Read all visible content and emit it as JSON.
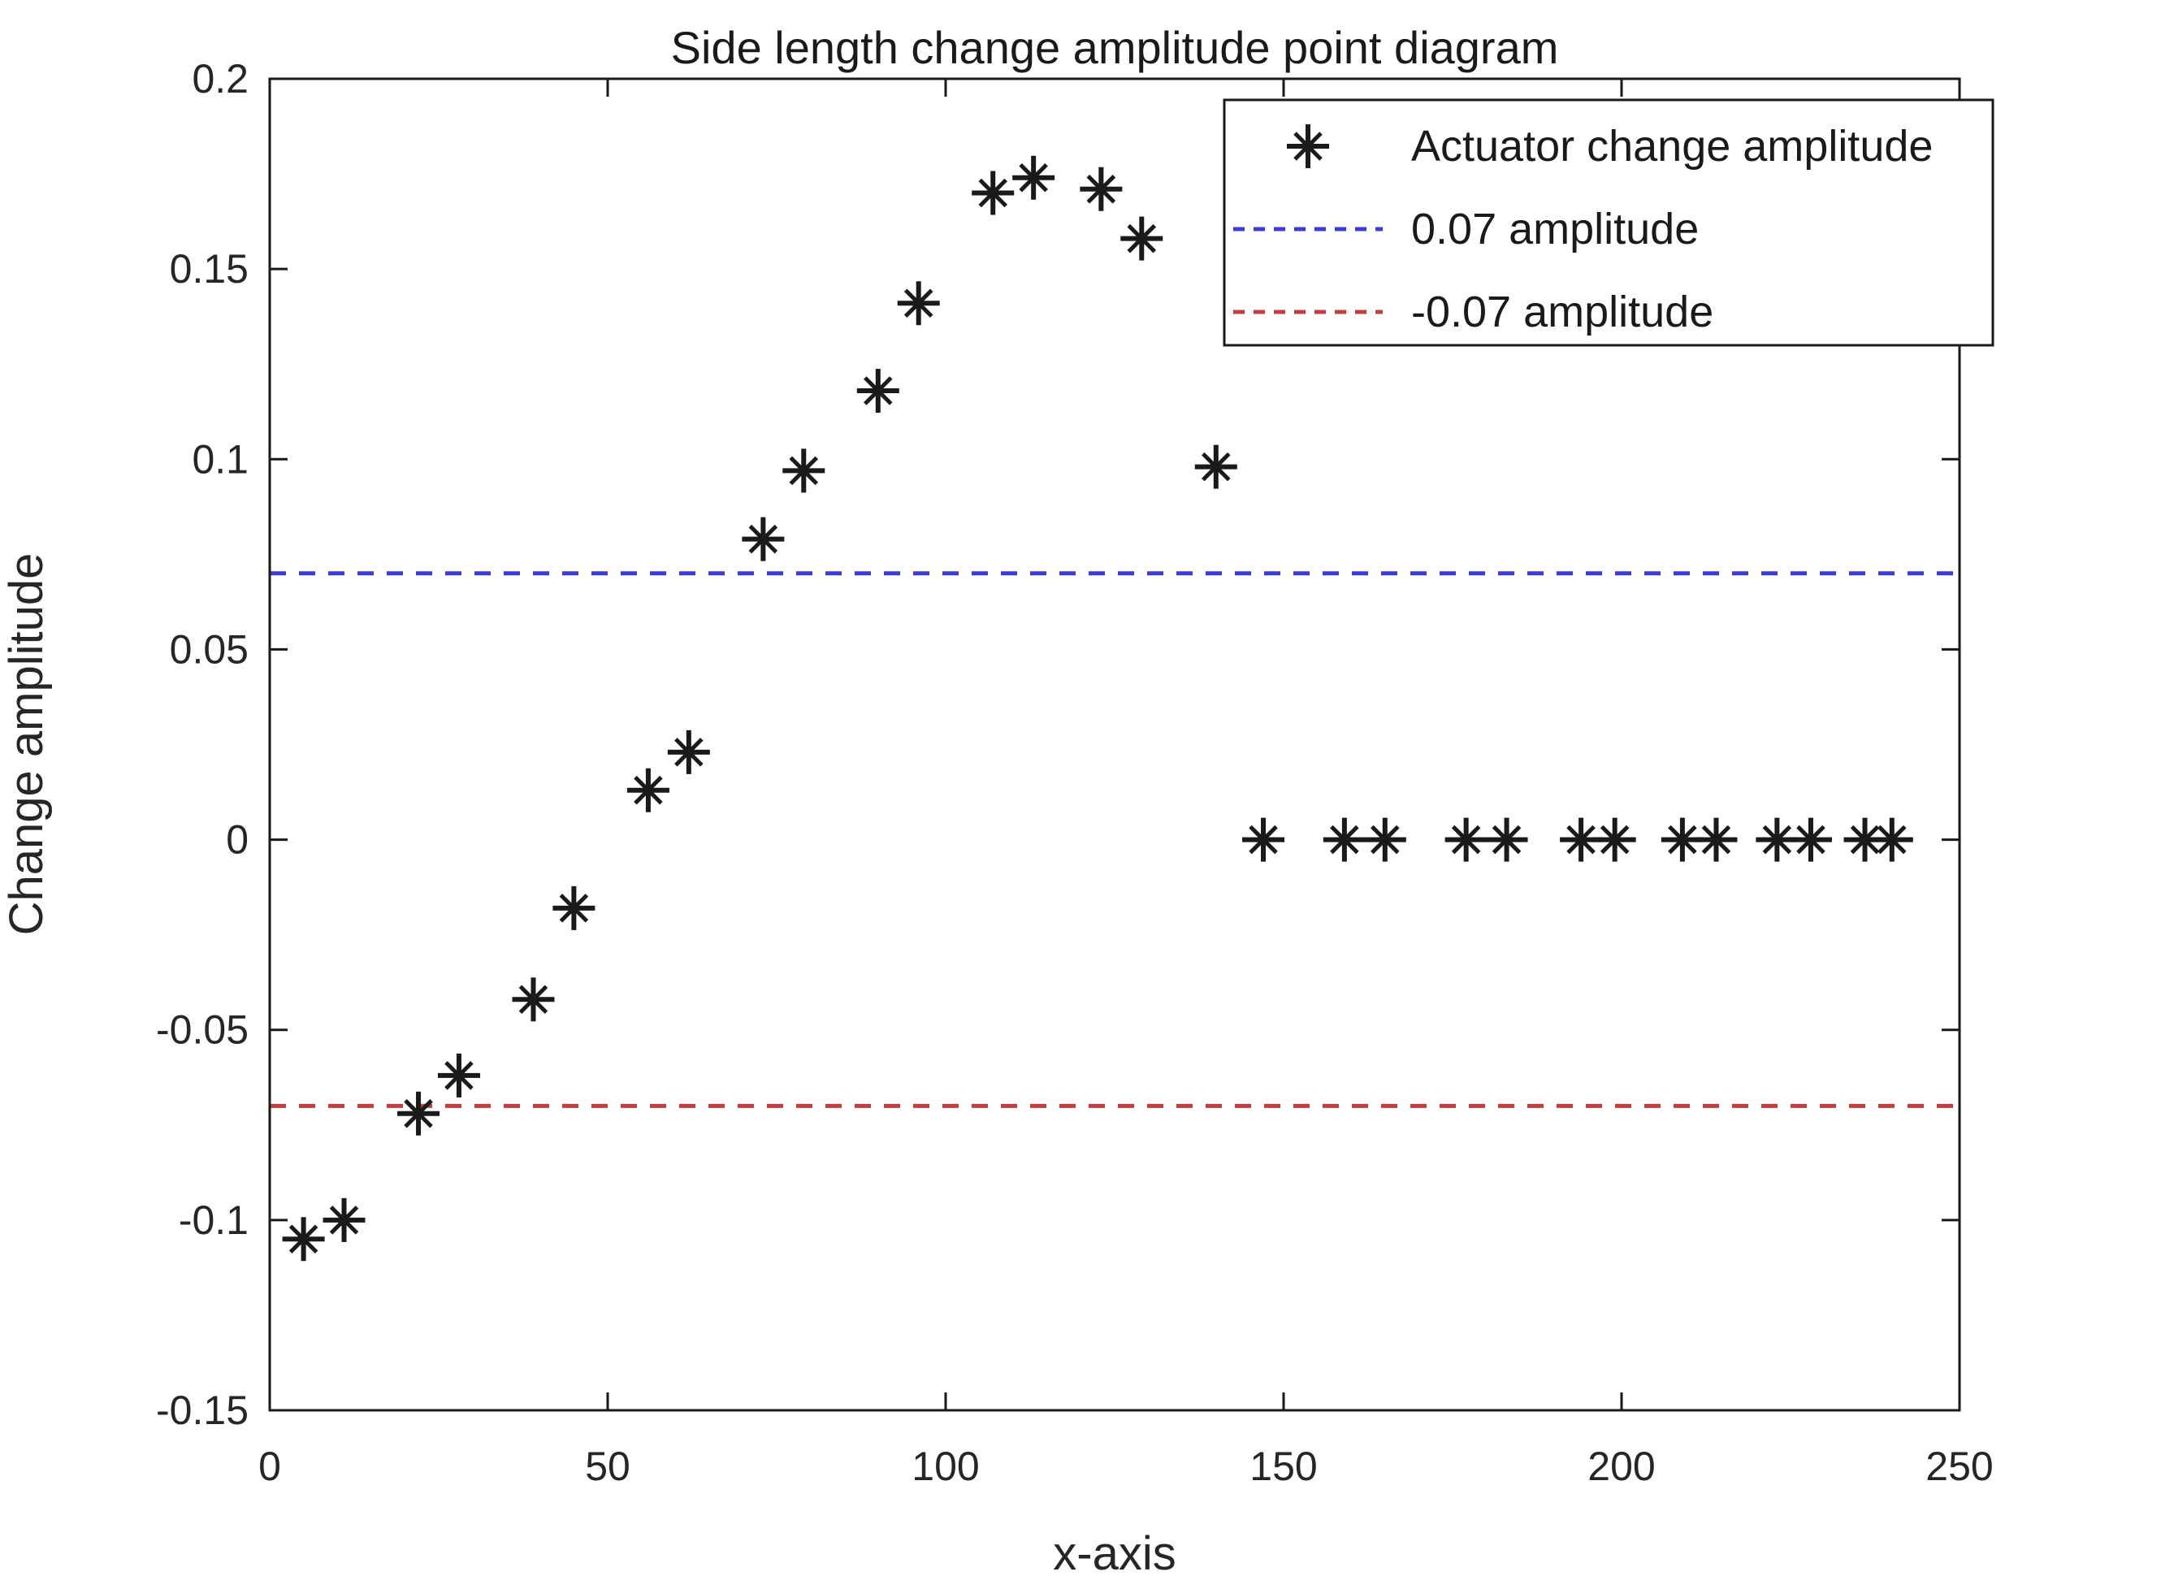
{
  "chart_data": {
    "type": "scatter",
    "title": "Side length change amplitude point diagram",
    "xlabel": "x-axis",
    "ylabel": "Change amplitude",
    "xlim": [
      0,
      250
    ],
    "ylim": [
      -0.15,
      0.2
    ],
    "x_ticks": [
      0,
      50,
      100,
      150,
      200,
      250
    ],
    "x_tick_labels": [
      "0",
      "50",
      "100",
      "150",
      "200",
      "250"
    ],
    "y_ticks": [
      -0.15,
      -0.1,
      -0.05,
      0,
      0.05,
      0.1,
      0.15,
      0.2
    ],
    "y_tick_labels": [
      "-0.15",
      "-0.1",
      "-0.05",
      "0",
      "0.05",
      "0.1",
      "0.15",
      "0.2"
    ],
    "grid": false,
    "legend_position": "top-right-inside",
    "colors": {
      "marker": "#1a1a1a",
      "upper_line": "#3d3dcd",
      "lower_line": "#c04040",
      "axis": "#1a1a1a",
      "text": "#262626"
    },
    "series": [
      {
        "name": "Actuator change amplitude",
        "type": "scatter",
        "marker": "asterisk",
        "color": "#1a1a1a",
        "points": [
          [
            5,
            -0.105
          ],
          [
            11,
            -0.1
          ],
          [
            22,
            -0.072
          ],
          [
            28,
            -0.062
          ],
          [
            39,
            -0.042
          ],
          [
            45,
            -0.018
          ],
          [
            56,
            0.013
          ],
          [
            62,
            0.023
          ],
          [
            73,
            0.079
          ],
          [
            79,
            0.097
          ],
          [
            90,
            0.118
          ],
          [
            96,
            0.141
          ],
          [
            107,
            0.17
          ],
          [
            113,
            0.174
          ],
          [
            123,
            0.171
          ],
          [
            129,
            0.158
          ],
          [
            140,
            0.098
          ],
          [
            147,
            0
          ],
          [
            159,
            0
          ],
          [
            165,
            0
          ],
          [
            177,
            0
          ],
          [
            183,
            0
          ],
          [
            194,
            0
          ],
          [
            199,
            0
          ],
          [
            209,
            0
          ],
          [
            214,
            0
          ],
          [
            223,
            0
          ],
          [
            228,
            0
          ],
          [
            236,
            0
          ],
          [
            240,
            0
          ]
        ]
      },
      {
        "name": "0.07 amplitude",
        "type": "hline",
        "y": 0.07,
        "style": "dashed",
        "color": "#3d3dcd"
      },
      {
        "name": "-0.07 amplitude",
        "type": "hline",
        "y": -0.07,
        "style": "dashed",
        "color": "#c04040"
      }
    ]
  }
}
